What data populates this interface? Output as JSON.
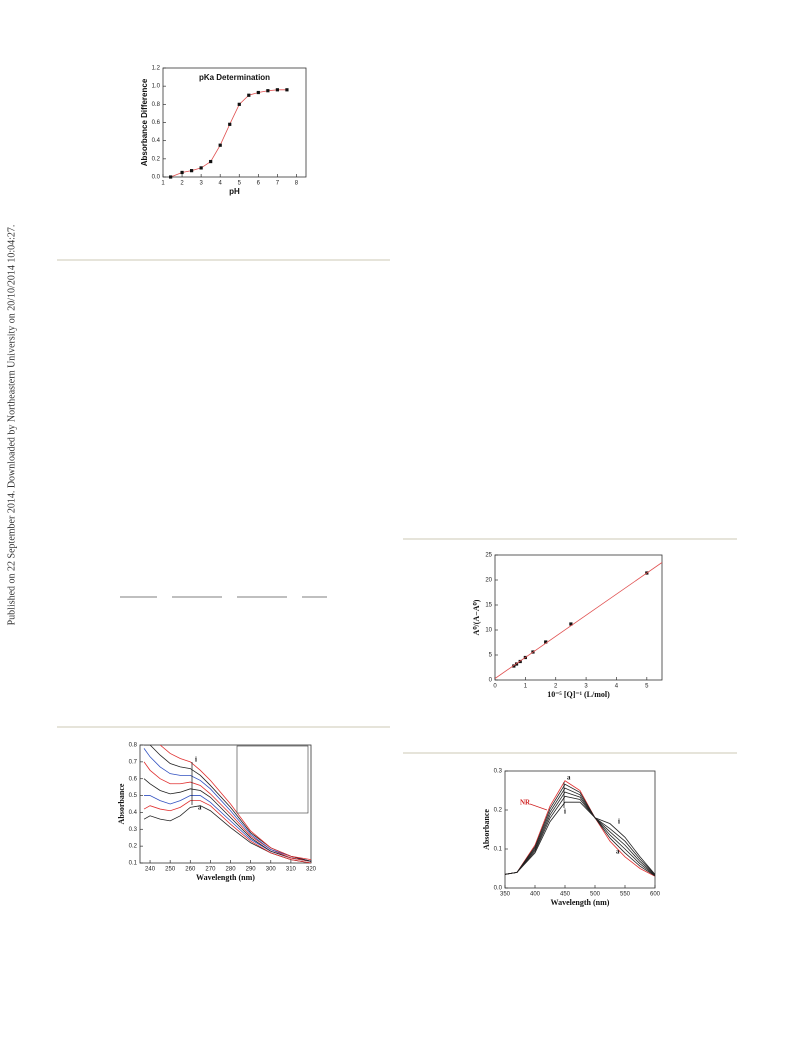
{
  "document": {
    "sidebar": "Published on 22 September 2014. Downloaded by Northeastern University on 20/10/2014 10:04:27."
  },
  "chart_data": [
    {
      "type": "line",
      "title": "pKa  Determination",
      "x_label": "pH",
      "y_label": "Absorbance Difference",
      "x": [
        1.4,
        2,
        2.5,
        3,
        3.5,
        4,
        4.5,
        5,
        5.5,
        6,
        6.5,
        7,
        7.5
      ],
      "series": [
        {
          "color": "#e05050",
          "values": [
            0.0,
            0.05,
            0.07,
            0.1,
            0.17,
            0.35,
            0.58,
            0.8,
            0.9,
            0.93,
            0.95,
            0.96,
            0.96
          ],
          "markers": true
        }
      ],
      "xlim": [
        1,
        8.5
      ],
      "xticks": [
        1,
        2,
        3,
        4,
        5,
        6,
        7,
        8
      ],
      "ylim": [
        0,
        1.2
      ],
      "yticks": [
        {
          "value": 0,
          "label": "0.0"
        },
        {
          "value": 0.2,
          "label": "0.2"
        },
        {
          "value": 0.4,
          "label": "0.4"
        },
        {
          "value": 0.6,
          "label": "0.6"
        },
        {
          "value": 0.8,
          "label": "0.8"
        },
        {
          "value": 1,
          "label": "1.0"
        },
        {
          "value": 1.2,
          "label": "1.2"
        }
      ]
    },
    {
      "type": "line",
      "x_label": "Wavelength (nm)",
      "y_label": "Absorbance",
      "annotations": [
        "i",
        "a"
      ],
      "x": [
        237,
        240,
        245,
        250,
        255,
        260,
        265,
        270,
        280,
        290,
        300,
        310,
        320
      ],
      "series": [
        {
          "color": "#222222",
          "values": [
            0.36,
            0.38,
            0.36,
            0.35,
            0.38,
            0.43,
            0.44,
            0.41,
            0.31,
            0.22,
            0.16,
            0.12,
            0.1
          ]
        },
        {
          "color": "#e03030",
          "values": [
            0.42,
            0.44,
            0.42,
            0.41,
            0.43,
            0.47,
            0.47,
            0.44,
            0.33,
            0.23,
            0.16,
            0.12,
            0.1
          ]
        },
        {
          "color": "#3050c0",
          "values": [
            0.5,
            0.5,
            0.47,
            0.45,
            0.47,
            0.5,
            0.5,
            0.46,
            0.35,
            0.24,
            0.17,
            0.13,
            0.11
          ]
        },
        {
          "color": "#222222",
          "values": [
            0.6,
            0.57,
            0.53,
            0.51,
            0.52,
            0.54,
            0.53,
            0.49,
            0.37,
            0.25,
            0.17,
            0.13,
            0.11
          ]
        },
        {
          "color": "#e03030",
          "values": [
            0.7,
            0.65,
            0.6,
            0.57,
            0.57,
            0.58,
            0.56,
            0.51,
            0.39,
            0.26,
            0.18,
            0.13,
            0.11
          ]
        },
        {
          "color": "#3050c0",
          "values": [
            0.78,
            0.73,
            0.67,
            0.63,
            0.62,
            0.62,
            0.59,
            0.54,
            0.41,
            0.27,
            0.18,
            0.14,
            0.11
          ]
        },
        {
          "color": "#222222",
          "values": [
            0.8,
            0.8,
            0.74,
            0.69,
            0.67,
            0.66,
            0.62,
            0.56,
            0.43,
            0.28,
            0.19,
            0.14,
            0.11
          ]
        },
        {
          "color": "#e03030",
          "values": [
            null,
            null,
            0.8,
            0.75,
            0.72,
            0.7,
            0.65,
            0.59,
            0.45,
            0.29,
            0.19,
            0.14,
            0.12
          ]
        }
      ],
      "xlim": [
        235,
        320
      ],
      "xticks": [
        240,
        250,
        260,
        270,
        280,
        290,
        300,
        310,
        320
      ],
      "ylim": [
        0.1,
        0.8
      ],
      "yticks": [
        0.1,
        0.2,
        0.3,
        0.4,
        0.5,
        0.6,
        0.7,
        0.8
      ]
    },
    {
      "type": "scatter",
      "x_label": "10⁻⁵ [Q]⁻¹ (L/mol)",
      "y_label": "A⁰/(A−A⁰)",
      "series": [
        {
          "color": "#222222",
          "x": [
            0.62,
            0.71,
            0.83,
            1,
            1.25,
            1.67,
            2.5,
            5
          ],
          "values": [
            2.8,
            3.2,
            3.7,
            4.5,
            5.6,
            7.6,
            11.2,
            21.4
          ],
          "markers": true,
          "noline": true
        },
        {
          "color": "#e05050",
          "x": [
            0,
            5.5
          ],
          "values": [
            0.3,
            23.5
          ]
        }
      ],
      "xlim": [
        0,
        5.5
      ],
      "xticks": [
        0,
        1,
        2,
        3,
        4,
        5
      ],
      "ylim": [
        0,
        25
      ],
      "yticks": [
        0,
        5,
        10,
        15,
        20,
        25
      ]
    },
    {
      "type": "line",
      "x_label": "Wavelength (nm)",
      "y_label": "Absorbance",
      "annotations": [
        "a",
        "i",
        "NR",
        "i",
        "a"
      ],
      "x": [
        350,
        370,
        400,
        425,
        450,
        475,
        500,
        525,
        550,
        575,
        600
      ],
      "series": [
        {
          "color": "#e03030",
          "values": [
            0.035,
            0.04,
            0.11,
            0.21,
            0.275,
            0.25,
            0.18,
            0.12,
            0.08,
            0.05,
            0.03
          ]
        },
        {
          "color": "#222222",
          "values": [
            0.035,
            0.04,
            0.106,
            0.203,
            0.266,
            0.245,
            0.18,
            0.128,
            0.09,
            0.056,
            0.031
          ]
        },
        {
          "color": "#222222",
          "values": [
            0.035,
            0.04,
            0.102,
            0.195,
            0.256,
            0.239,
            0.18,
            0.136,
            0.1,
            0.062,
            0.032
          ]
        },
        {
          "color": "#222222",
          "values": [
            0.035,
            0.04,
            0.098,
            0.187,
            0.246,
            0.233,
            0.18,
            0.144,
            0.11,
            0.068,
            0.033
          ]
        },
        {
          "color": "#222222",
          "values": [
            0.035,
            0.04,
            0.094,
            0.179,
            0.235,
            0.227,
            0.18,
            0.152,
            0.12,
            0.074,
            0.034
          ]
        },
        {
          "color": "#222222",
          "values": [
            0.035,
            0.04,
            0.09,
            0.17,
            0.22,
            0.22,
            0.18,
            0.165,
            0.13,
            0.08,
            0.035
          ]
        }
      ],
      "xlim": [
        350,
        600
      ],
      "xticks": [
        350,
        400,
        450,
        500,
        550,
        600
      ],
      "ylim": [
        0,
        0.3
      ],
      "yticks": [
        {
          "value": 0,
          "label": "0.0"
        },
        {
          "value": 0.1,
          "label": "0.1"
        },
        {
          "value": 0.2,
          "label": "0.2"
        },
        {
          "value": 0.3,
          "label": "0.3"
        }
      ]
    }
  ]
}
